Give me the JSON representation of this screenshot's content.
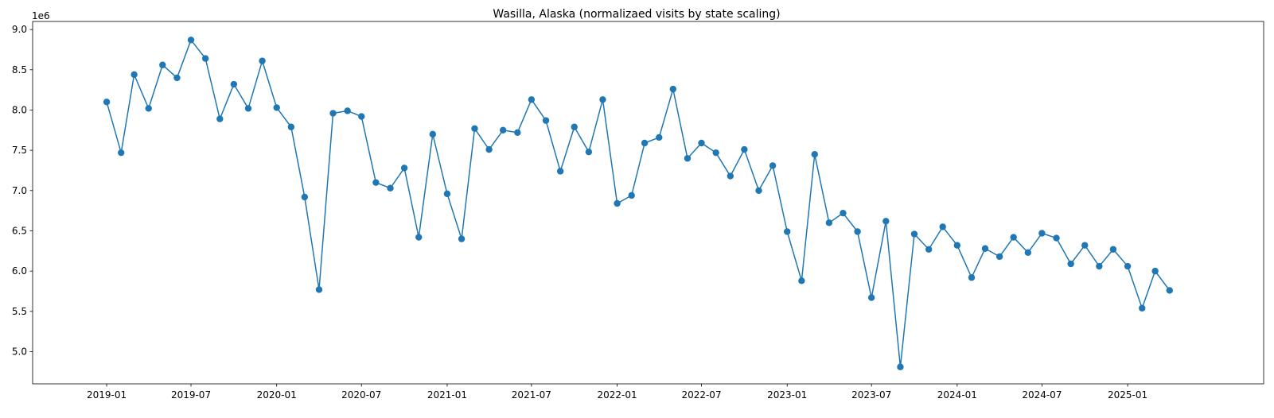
{
  "chart_data": {
    "type": "line",
    "title": "Wasilla, Alaska (normalizaed visits by state scaling)",
    "xlabel": "",
    "ylabel": "",
    "y_scale_label": "1e6",
    "y_multiplier": 1000000,
    "grid": false,
    "legend": "none",
    "marker": "circle",
    "color": "#1f77b4",
    "x": [
      "2019-01",
      "2019-02",
      "2019-03",
      "2019-04",
      "2019-05",
      "2019-06",
      "2019-07",
      "2019-08",
      "2019-09",
      "2019-10",
      "2019-11",
      "2019-12",
      "2020-01",
      "2020-02",
      "2020-03",
      "2020-04",
      "2020-05",
      "2020-06",
      "2020-07",
      "2020-08",
      "2020-09",
      "2020-10",
      "2020-11",
      "2020-12",
      "2021-01",
      "2021-02",
      "2021-03",
      "2021-04",
      "2021-05",
      "2021-06",
      "2021-07",
      "2021-08",
      "2021-09",
      "2021-10",
      "2021-11",
      "2021-12",
      "2022-01",
      "2022-02",
      "2022-03",
      "2022-04",
      "2022-05",
      "2022-06",
      "2022-07",
      "2022-08",
      "2022-09",
      "2022-10",
      "2022-11",
      "2022-12",
      "2023-01",
      "2023-02",
      "2023-03",
      "2023-04",
      "2023-05",
      "2023-06",
      "2023-07",
      "2023-08",
      "2023-09",
      "2023-10",
      "2023-11",
      "2023-12",
      "2024-01",
      "2024-02",
      "2024-03",
      "2024-04",
      "2024-05",
      "2024-06",
      "2024-07",
      "2024-08",
      "2024-09",
      "2024-10",
      "2024-11",
      "2024-12",
      "2025-01",
      "2025-02",
      "2025-03",
      "2025-04"
    ],
    "values": [
      8.1,
      7.47,
      8.44,
      8.02,
      8.56,
      8.4,
      8.87,
      8.64,
      7.89,
      8.32,
      8.02,
      8.61,
      8.03,
      7.79,
      6.92,
      5.77,
      7.96,
      7.99,
      7.92,
      7.1,
      7.03,
      7.28,
      6.42,
      7.7,
      6.96,
      6.4,
      7.77,
      7.51,
      7.75,
      7.72,
      8.13,
      7.87,
      7.24,
      7.79,
      7.48,
      8.13,
      6.84,
      6.94,
      7.59,
      7.66,
      8.26,
      7.4,
      7.59,
      7.47,
      7.18,
      7.51,
      7.0,
      7.31,
      6.49,
      5.88,
      7.45,
      6.6,
      6.72,
      6.49,
      5.67,
      6.62,
      4.81,
      6.46,
      6.27,
      6.55,
      6.32,
      5.92,
      6.28,
      6.18,
      6.42,
      6.23,
      6.47,
      6.41,
      6.09,
      6.32,
      6.06,
      6.27,
      6.06,
      5.54,
      6.0,
      5.76
    ],
    "ylim": [
      4.6,
      9.1
    ],
    "yticks": [
      "5.0",
      "5.5",
      "6.0",
      "6.5",
      "7.0",
      "7.5",
      "8.0",
      "8.5",
      "9.0"
    ],
    "xlim": [
      "2018-07-26",
      "2025-10-20"
    ],
    "xticks": [
      "2019-01",
      "2019-07",
      "2020-01",
      "2020-07",
      "2021-01",
      "2021-07",
      "2022-01",
      "2022-07",
      "2023-01",
      "2023-07",
      "2024-01",
      "2024-07",
      "2025-01"
    ]
  }
}
